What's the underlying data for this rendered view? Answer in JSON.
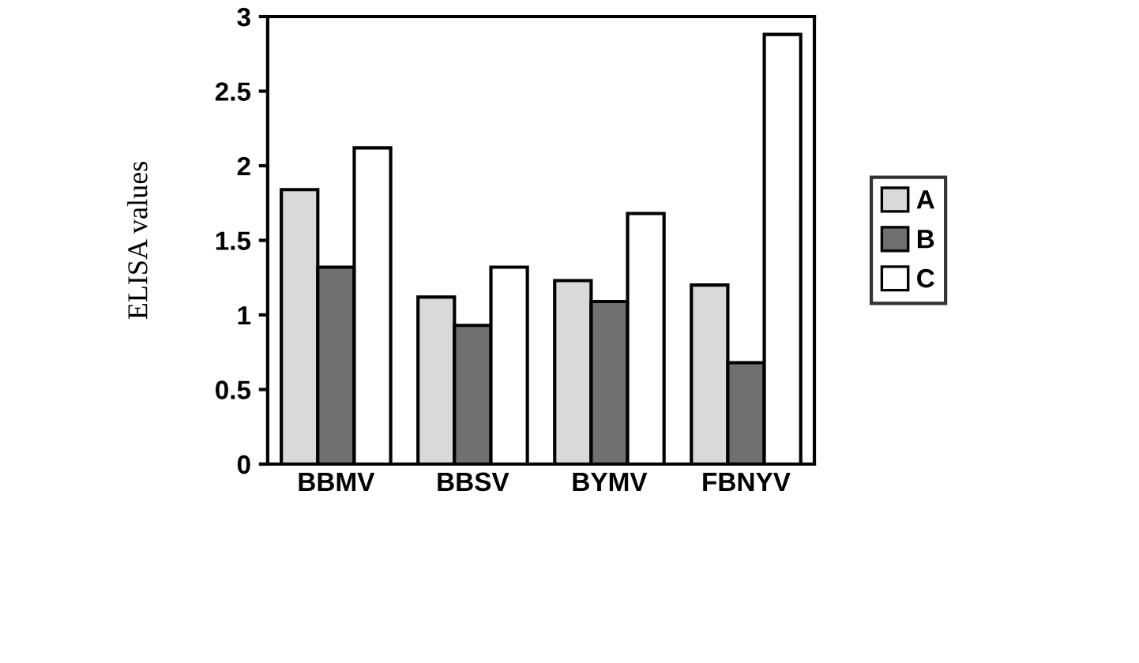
{
  "chart_data": {
    "type": "bar",
    "ylabel": "ELISA values",
    "categories": [
      "BBMV",
      "BBSV",
      "BYMV",
      "FBNYV"
    ],
    "series": [
      {
        "name": "A",
        "color": "#d9d9d9",
        "values": [
          1.84,
          1.12,
          1.23,
          1.2
        ]
      },
      {
        "name": "B",
        "color": "#707070",
        "values": [
          1.32,
          0.93,
          1.09,
          0.68
        ]
      },
      {
        "name": "C",
        "color": "#ffffff",
        "values": [
          2.12,
          1.32,
          1.68,
          2.88
        ]
      }
    ],
    "ylim": [
      0,
      3
    ],
    "yticks": [
      0,
      0.5,
      1,
      1.5,
      2,
      2.5,
      3
    ],
    "grid": false,
    "legend": "right"
  }
}
